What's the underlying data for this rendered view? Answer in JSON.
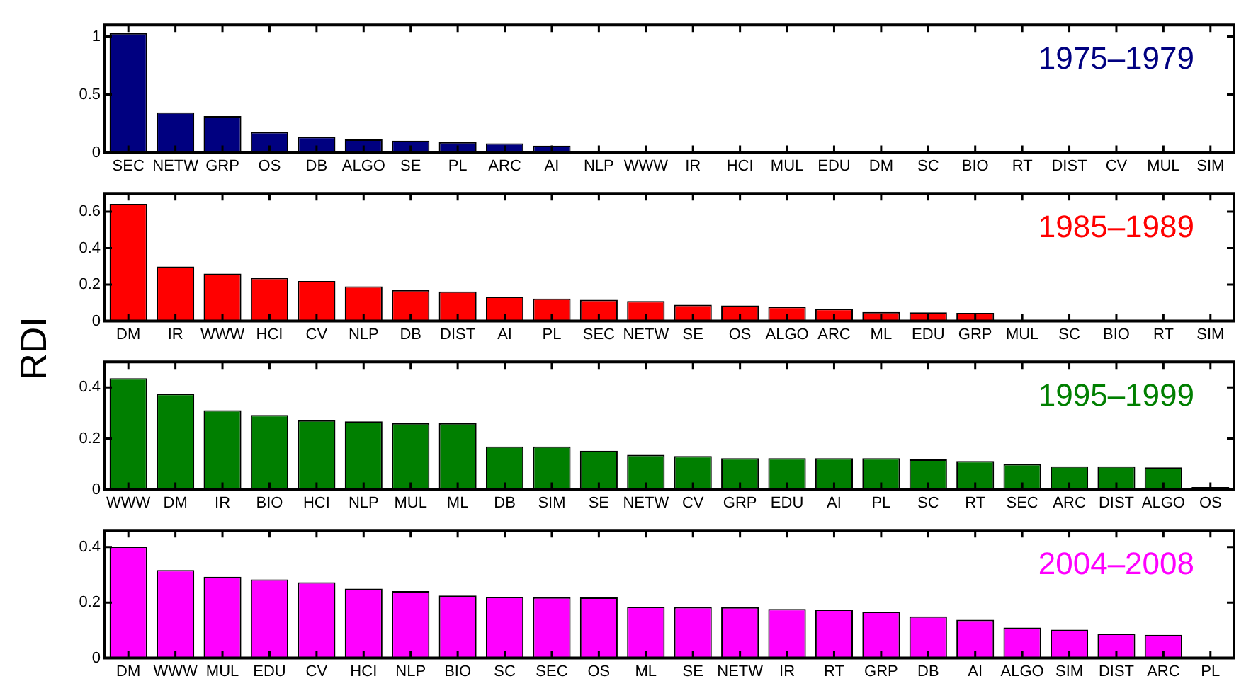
{
  "chart_data": [
    {
      "type": "bar",
      "title": "1975–1979",
      "categories": [
        "SEC",
        "NETW",
        "GRP",
        "OS",
        "DB",
        "ALGO",
        "SE",
        "PL",
        "ARC",
        "AI",
        "NLP",
        "WWW",
        "IR",
        "HCI",
        "MUL",
        "EDU",
        "DM",
        "SC",
        "BIO",
        "RT",
        "DIST",
        "CV",
        "MUL",
        "SIM"
      ],
      "values": [
        1.03,
        0.346,
        0.315,
        0.178,
        0.137,
        0.114,
        0.103,
        0.091,
        0.08,
        0.06,
        0,
        0,
        0,
        0,
        0,
        0,
        0,
        0,
        0,
        0,
        0,
        0,
        0,
        0
      ],
      "color": "#000080",
      "ylim": [
        0,
        1.1
      ],
      "yticks": [
        0,
        0.5,
        1
      ]
    },
    {
      "type": "bar",
      "title": "1985–1989",
      "ylabel": "RDI",
      "categories": [
        "DM",
        "IR",
        "WWW",
        "HCI",
        "CV",
        "NLP",
        "DB",
        "DIST",
        "AI",
        "PL",
        "SEC",
        "NETW",
        "SE",
        "OS",
        "ALGO",
        "ARC",
        "ML",
        "EDU",
        "GRP",
        "MUL",
        "SC",
        "BIO",
        "RT",
        "SIM"
      ],
      "values": [
        0.643,
        0.299,
        0.26,
        0.237,
        0.22,
        0.191,
        0.17,
        0.162,
        0.134,
        0.124,
        0.117,
        0.11,
        0.09,
        0.086,
        0.079,
        0.067,
        0.05,
        0.048,
        0.045,
        0,
        0,
        0,
        0,
        0
      ],
      "color": "#ff0000",
      "ylim": [
        0,
        0.7
      ],
      "yticks": [
        0,
        0.2,
        0.4,
        0.6
      ]
    },
    {
      "type": "bar",
      "title": "1995–1999",
      "categories": [
        "WWW",
        "DM",
        "IR",
        "BIO",
        "HCI",
        "NLP",
        "MUL",
        "ML",
        "DB",
        "SIM",
        "SE",
        "NETW",
        "CV",
        "GRP",
        "EDU",
        "AI",
        "PL",
        "SC",
        "RT",
        "SEC",
        "ARC",
        "DIST",
        "ALGO",
        "OS"
      ],
      "values": [
        0.436,
        0.375,
        0.311,
        0.292,
        0.271,
        0.267,
        0.26,
        0.26,
        0.169,
        0.169,
        0.152,
        0.136,
        0.131,
        0.123,
        0.123,
        0.123,
        0.123,
        0.118,
        0.112,
        0.1,
        0.091,
        0.091,
        0.087,
        0.01
      ],
      "color": "#007f00",
      "ylim": [
        0,
        0.5
      ],
      "yticks": [
        0,
        0.2,
        0.4
      ]
    },
    {
      "type": "bar",
      "title": "2004–2008",
      "categories": [
        "DM",
        "WWW",
        "MUL",
        "EDU",
        "CV",
        "HCI",
        "NLP",
        "BIO",
        "SC",
        "SEC",
        "OS",
        "ML",
        "SE",
        "NETW",
        "IR",
        "RT",
        "GRP",
        "DB",
        "AI",
        "ALGO",
        "SIM",
        "DIST",
        "ARC",
        "PL"
      ],
      "values": [
        0.402,
        0.317,
        0.293,
        0.283,
        0.273,
        0.25,
        0.241,
        0.225,
        0.221,
        0.219,
        0.218,
        0.185,
        0.184,
        0.183,
        0.177,
        0.175,
        0.167,
        0.15,
        0.138,
        0.11,
        0.102,
        0.088,
        0.084,
        0
      ],
      "color": "#ff00ff",
      "ylim": [
        0,
        0.46
      ],
      "yticks": [
        0,
        0.2,
        0.4
      ]
    }
  ]
}
